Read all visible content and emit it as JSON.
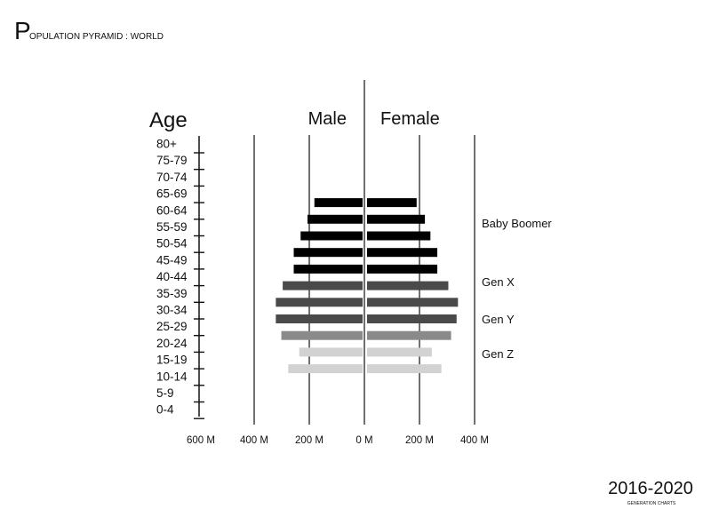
{
  "header": {
    "title_initial": "P",
    "title_rest": "OPULATION PYRAMID : WORLD"
  },
  "footer": {
    "years": "2016-2020",
    "caption": "GENERATION CHARTS"
  },
  "chart_data": {
    "type": "bar",
    "orientation": "horizontal-mirrored",
    "age_axis_title": "Age",
    "age_groups": [
      "80+",
      "75-79",
      "70-74",
      "65-69",
      "60-64",
      "55-59",
      "50-54",
      "45-49",
      "40-44",
      "35-39",
      "30-34",
      "25-29",
      "20-24",
      "15-19",
      "10-14",
      "5-9",
      "0-4"
    ],
    "x_ticks": [
      "600 M",
      "400 M",
      "200 M",
      "0 M",
      "200 M",
      "400 M"
    ],
    "x_tick_values": [
      -600,
      -400,
      -200,
      0,
      200,
      400
    ],
    "unit": "M",
    "grid": true,
    "series": [
      {
        "name": "Male",
        "values": [
          null,
          null,
          null,
          175,
          200,
          225,
          250,
          250,
          290,
          315,
          315,
          295,
          230,
          270,
          null,
          null,
          null
        ]
      },
      {
        "name": "Female",
        "values": [
          null,
          null,
          null,
          180,
          210,
          230,
          255,
          255,
          295,
          330,
          325,
          305,
          235,
          270,
          null,
          null,
          null
        ]
      }
    ],
    "generations": [
      {
        "name": "Baby Boomer",
        "color": "#000000",
        "ages": [
          "65-69",
          "60-64",
          "55-59",
          "50-54",
          "45-49"
        ]
      },
      {
        "name": "Gen X",
        "color": "#4a4a4a",
        "ages": [
          "40-44",
          "35-39",
          "30-34"
        ]
      },
      {
        "name": "Gen Y",
        "color": "#8a8a8a",
        "ages": [
          "25-29"
        ]
      },
      {
        "name": "Gen Z",
        "color": "#d2d2d2",
        "ages": [
          "20-24",
          "15-19"
        ]
      }
    ]
  }
}
